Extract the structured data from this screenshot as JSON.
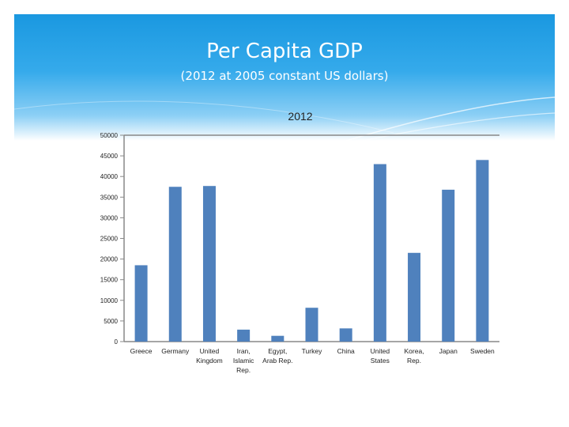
{
  "slide": {
    "title": "Per Capita GDP",
    "subtitle": "(2012 at 2005 constant US dollars)"
  },
  "colors": {
    "bar": "#4f81bd",
    "axis": "#888888",
    "header": "#1a98e0"
  },
  "chart_data": {
    "type": "bar",
    "title": "2012",
    "categories": [
      "Greece",
      "Germany",
      "United Kingdom",
      "Iran, Islamic Rep.",
      "Egypt, Arab Rep.",
      "Turkey",
      "China",
      "United States",
      "Korea, Rep.",
      "Japan",
      "Sweden"
    ],
    "category_lines": [
      [
        "Greece"
      ],
      [
        "Germany"
      ],
      [
        "United",
        "Kingdom"
      ],
      [
        "Iran,",
        "Islamic",
        "Rep."
      ],
      [
        "Egypt,",
        "Arab Rep."
      ],
      [
        "Turkey"
      ],
      [
        "China"
      ],
      [
        "United",
        "States"
      ],
      [
        "Korea,",
        "Rep."
      ],
      [
        "Japan"
      ],
      [
        "Sweden"
      ]
    ],
    "values": [
      18500,
      37500,
      37700,
      2900,
      1400,
      8200,
      3200,
      43000,
      21500,
      36800,
      44000
    ],
    "ylim": [
      0,
      50000
    ],
    "yticks": [
      "0",
      "5000",
      "10000",
      "15000",
      "20000",
      "25000",
      "30000",
      "35000",
      "40000",
      "45000",
      "50000"
    ],
    "grid": "top-only",
    "legend": "none"
  }
}
